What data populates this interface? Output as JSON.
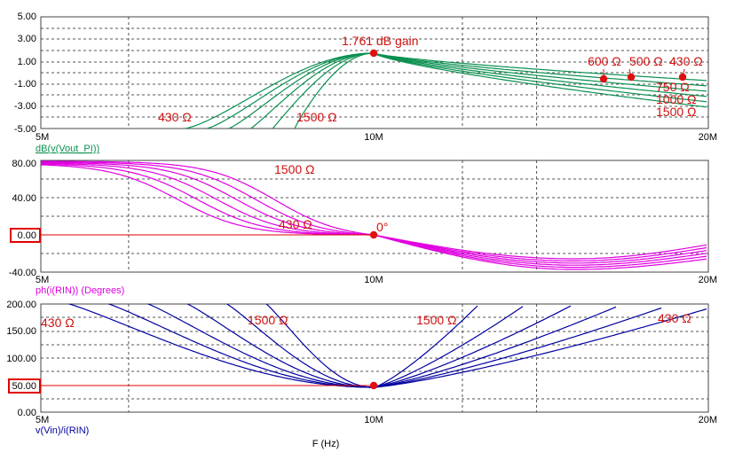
{
  "colors": {
    "green": "#0a9050",
    "magenta": "#e000e0",
    "blue": "#0000a0",
    "annotation": "#d01010",
    "reference": "#e00000",
    "grid": "#555555"
  },
  "x_axis": {
    "label": "F (Hz)",
    "scale": "log",
    "ticks": [
      "5M",
      "10M",
      "20M"
    ],
    "range": [
      5000000,
      20000000
    ]
  },
  "chart_data": [
    {
      "type": "line",
      "ylabel": "dB(v(Vout_PI))",
      "ylim": [
        -5,
        5
      ],
      "yticks": [
        "5.00",
        "3.00",
        "1.00",
        "-1.00",
        "-3.00",
        "-5.00"
      ],
      "grid": true,
      "series_param": [
        "430 Ω",
        "500 Ω",
        "600 Ω",
        "750 Ω",
        "1000 Ω",
        "1500 Ω"
      ],
      "annotations": [
        "1.761 dB gain",
        "430 Ω",
        "1500 Ω",
        "600 Ω",
        "500 Ω",
        "430 Ω",
        "750 Ω",
        "1000 Ω",
        "1500 Ω"
      ],
      "peak": {
        "x": 10000000,
        "y": 1.761
      }
    },
    {
      "type": "line",
      "ylabel": "ph(i(RIN)) (Degrees)",
      "ylim": [
        -40,
        90
      ],
      "yticks": [
        "80.00",
        "40.00",
        "0.00",
        "-40.00"
      ],
      "highlighted_tick": "0.00",
      "reference_y": 0,
      "grid": true,
      "annotations": [
        "1500 Ω",
        "430 Ω",
        "0°"
      ],
      "crossing": {
        "x": 10000000,
        "y": 0
      }
    },
    {
      "type": "line",
      "ylabel": "v(Vin)/i(RIN)",
      "ylim": [
        0,
        200
      ],
      "yticks": [
        "200.00",
        "150.00",
        "100.00",
        "50.00",
        "0.00"
      ],
      "highlighted_tick": "50.00",
      "reference_y": 50,
      "grid": true,
      "annotations": [
        "430 Ω",
        "1500 Ω",
        "1500 Ω",
        "430 Ω"
      ],
      "minimum": {
        "x": 10000000,
        "y": 50
      }
    }
  ]
}
